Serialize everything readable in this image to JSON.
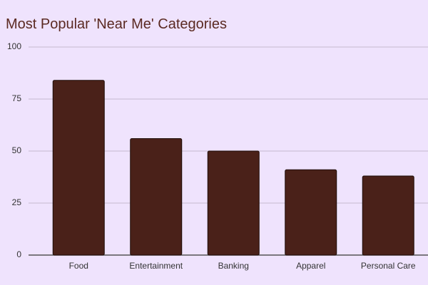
{
  "chart_data": {
    "type": "bar",
    "title": "Most Popular 'Near Me' Categories",
    "categories": [
      "Food",
      "Entertainment",
      "Banking",
      "Apparel",
      "Personal Care"
    ],
    "values": [
      84,
      56,
      50,
      41,
      38
    ],
    "color": "#4a2119",
    "ylim": [
      0,
      100
    ],
    "yticks": [
      0,
      25,
      50,
      75,
      100
    ],
    "grid": true
  }
}
